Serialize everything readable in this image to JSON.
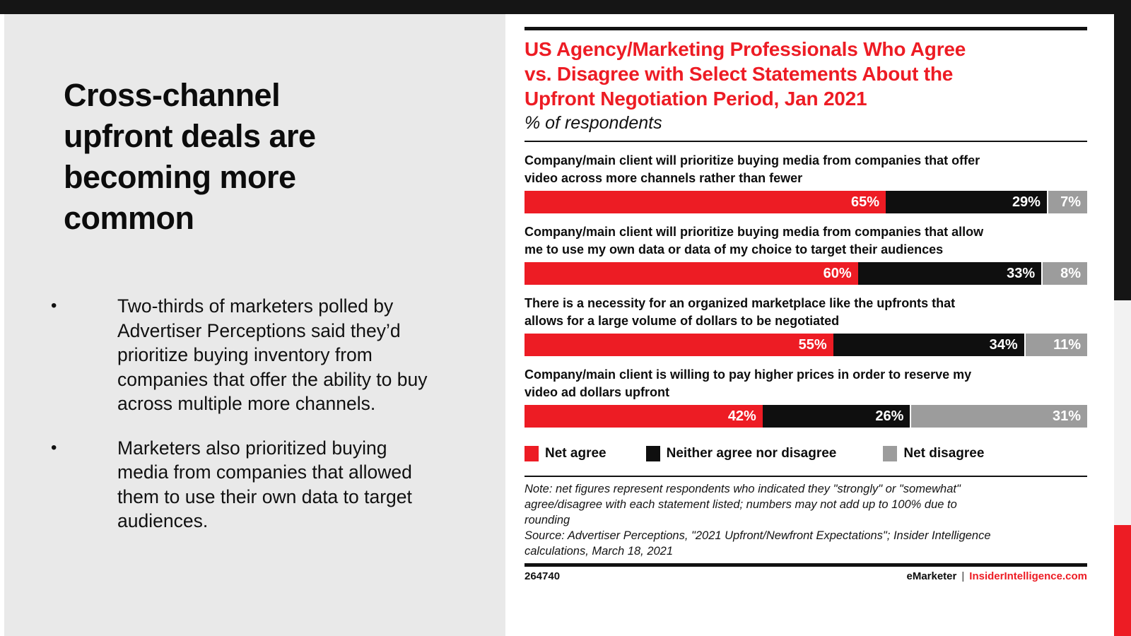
{
  "colors": {
    "accent_red": "#ed1c24",
    "bar_black": "#0f0f0f",
    "bar_gray": "#9c9c9c",
    "panel_gray": "#e9e9e9",
    "top_bar_black": "#151515",
    "strip_gray": "#f2f2f2"
  },
  "slide": {
    "bullet_marker": "•",
    "title_lines": [
      "Cross-channel",
      "upfront deals are",
      "becoming more",
      "common"
    ],
    "bullets": [
      [
        "Two-thirds of marketers polled by",
        "Advertiser Perceptions said they’d",
        "prioritize buying inventory from",
        "companies that offer the ability to buy",
        "across multiple more channels."
      ],
      [
        "Marketers also prioritized buying",
        "media from companies that allowed",
        "them to use their own data to target",
        "audiences."
      ]
    ]
  },
  "chart": {
    "title_lines": [
      "US Agency/Marketing Professionals Who Agree",
      "vs. Disagree with Select Statements About the",
      "Upfront Negotiation Period, Jan 2021"
    ],
    "subtitle": "% of respondents",
    "note_lines": [
      "Note: net figures represent respondents who indicated they \"strongly\" or \"somewhat\"",
      "agree/disagree with each statement listed; numbers may not add up to 100% due to",
      "rounding"
    ],
    "source_lines": [
      "Source: Advertiser Perceptions, \"2021 Upfront/Newfront Expectations\"; Insider Intelligence",
      "calculations, March 18, 2021"
    ],
    "chart_id": "264740",
    "brand": "eMarketer",
    "brand_separator": "|",
    "brand_site": "InsiderIntelligence.com"
  },
  "chart_data": {
    "type": "bar",
    "orientation": "horizontal_stacked",
    "title": "US Agency/Marketing Professionals Who Agree vs. Disagree with Select Statements About the Upfront Negotiation Period, Jan 2021",
    "unit": "% of respondents",
    "value_suffix": "%",
    "xlim": [
      0,
      100
    ],
    "legend_position": "bottom",
    "categories": [
      [
        "Company/main client will prioritize buying media from companies that offer",
        "video across more channels rather than fewer"
      ],
      [
        "Company/main client will prioritize buying media from companies that allow",
        "me to use my own data or data of my choice to target their audiences"
      ],
      [
        "There is a necessity for an organized marketplace like the upfronts that",
        "allows for a large volume of dollars to be negotiated"
      ],
      [
        "Company/main client is willing to pay higher prices in order to reserve my",
        "video ad dollars upfront"
      ]
    ],
    "series": [
      {
        "name": "Net agree",
        "color": "#ed1c24",
        "values": [
          65,
          60,
          55,
          42
        ]
      },
      {
        "name": "Neither agree nor disagree",
        "color": "#0f0f0f",
        "values": [
          29,
          33,
          34,
          26
        ]
      },
      {
        "name": "Net disagree",
        "color": "#9c9c9c",
        "values": [
          7,
          8,
          11,
          31
        ]
      }
    ]
  }
}
